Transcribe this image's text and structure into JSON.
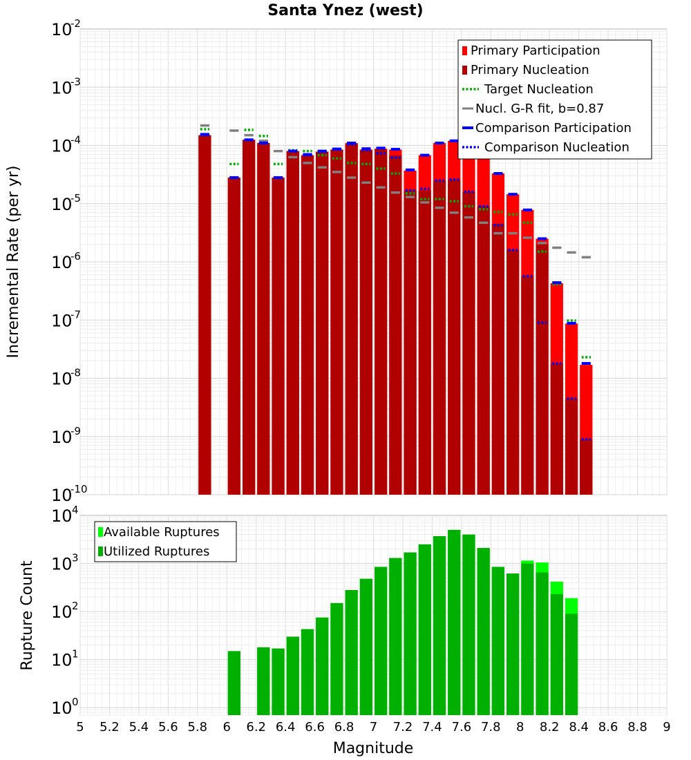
{
  "chart_data": [
    {
      "type": "bar",
      "title": "Santa Ynez (west)",
      "xlabel": "",
      "ylabel": "Incremental Rate (per yr)",
      "xlim": [
        5,
        9
      ],
      "ylim": [
        1e-10,
        0.01
      ],
      "yscale": "log",
      "ytick_exponents": [
        "-10",
        "-9",
        "-8",
        "-7",
        "-6",
        "-5",
        "-4",
        "-3",
        "-2"
      ],
      "grid": true,
      "legend_position": "top-right",
      "bin_width": 0.1,
      "x": [
        5.85,
        6.05,
        6.15,
        6.25,
        6.35,
        6.45,
        6.55,
        6.65,
        6.75,
        6.85,
        6.95,
        7.05,
        7.15,
        7.25,
        7.35,
        7.45,
        7.55,
        7.65,
        7.75,
        7.85,
        7.95,
        8.05,
        8.15,
        8.25,
        8.35,
        8.45
      ],
      "series": [
        {
          "name": "Primary Participation",
          "color": "#ff0000",
          "style": "bar",
          "values": [
            0.00015,
            2.8e-05,
            0.000125,
            0.00011,
            2.8e-05,
            8e-05,
            6.8e-05,
            7.8e-05,
            8.5e-05,
            0.00011,
            8.5e-05,
            8.8e-05,
            8.5e-05,
            3.7e-05,
            6.8e-05,
            0.00011,
            0.00012,
            9e-05,
            6.5e-05,
            3.3e-05,
            1.45e-05,
            7.8e-06,
            2.5e-06,
            4.3e-07,
            8.7e-08,
            1.7e-08
          ]
        },
        {
          "name": "Primary Nucleation",
          "color": "#b00000",
          "style": "bar",
          "values": [
            0.00015,
            2.8e-05,
            0.000125,
            0.00011,
            2.8e-05,
            8e-05,
            6.8e-05,
            7.8e-05,
            8.5e-05,
            0.000105,
            8.3e-05,
            8.5e-05,
            6.7e-05,
            1.7e-05,
            1.7e-05,
            2.5e-05,
            2.6e-05,
            1.6e-05,
            9e-06,
            4.5e-06,
            1.6e-06,
            5.7e-07,
            2e-06,
            1.8e-08,
            4.5e-09,
            9e-10
          ]
        },
        {
          "name": "Target Nucleation",
          "color": "#00b000",
          "style": "dotted-tick",
          "values": [
            0.00019,
            4.8e-05,
            0.000185,
            0.000145,
            4.8e-05,
            8.3e-05,
            8e-05,
            6.8e-05,
            6e-05,
            5e-05,
            4.8e-05,
            4e-05,
            3.3e-05,
            1.5e-05,
            1.2e-05,
            1.2e-05,
            1.1e-05,
            9e-06,
            8e-06,
            7.2e-06,
            6.5e-06,
            4.7e-06,
            1.5e-06,
            4.1e-07,
            9.8e-08,
            2.3e-08
          ]
        },
        {
          "name": "Nucl. G-R fit, b=0.87",
          "color": "#808080",
          "style": "tick",
          "values": [
            0.00022,
            0.00018,
            0.00015,
            0.00012,
            8e-05,
            6.3e-05,
            5e-05,
            4.2e-05,
            3.5e-05,
            2.8e-05,
            2.3e-05,
            1.9e-05,
            1.55e-05,
            1.3e-05,
            1.05e-05,
            8.5e-06,
            7e-06,
            5.8e-06,
            4.7e-06,
            3.1e-06,
            3.1e-06,
            2.6e-06,
            2.1e-06,
            1.75e-06,
            1.45e-06,
            1.2e-06
          ]
        },
        {
          "name": "Comparison Participation",
          "color": "#0000ff",
          "style": "tick",
          "values": [
            0.000155,
            2.8e-05,
            0.000125,
            0.00011,
            2.8e-05,
            8e-05,
            7e-05,
            8e-05,
            8.7e-05,
            0.00011,
            8.8e-05,
            9e-05,
            8.6e-05,
            3.8e-05,
            6.8e-05,
            0.00011,
            0.00012,
            9e-05,
            6.5e-05,
            3.3e-05,
            1.45e-05,
            7.8e-06,
            2.5e-06,
            4.4e-07,
            8.8e-08,
            1.8e-08
          ]
        },
        {
          "name": "Comparison Nucleation",
          "color": "#0000ff",
          "style": "dotted-tick",
          "values": [
            0.00015,
            2.8e-05,
            0.000125,
            0.00011,
            2.8e-05,
            8e-05,
            6.8e-05,
            7.8e-05,
            8.5e-05,
            0.000105,
            8.3e-05,
            7.3e-05,
            6.2e-05,
            1.7e-05,
            1.8e-05,
            2.5e-05,
            2.6e-05,
            1.6e-05,
            9e-06,
            4.3e-06,
            1.6e-06,
            5.7e-07,
            9e-08,
            1.8e-08,
            4.5e-09,
            9e-10
          ]
        }
      ]
    },
    {
      "type": "bar",
      "title": "",
      "xlabel": "Magnitude",
      "ylabel": "Rupture Count",
      "xlim": [
        5,
        9
      ],
      "ylim": [
        0.7,
        10000
      ],
      "yscale": "log",
      "ytick_exponents": [
        "0",
        "1",
        "2",
        "3",
        "4"
      ],
      "xticks": [
        "5",
        "5.2",
        "5.4",
        "5.6",
        "5.8",
        "6",
        "6.2",
        "6.4",
        "6.6",
        "6.8",
        "7",
        "7.2",
        "7.4",
        "7.6",
        "7.8",
        "8",
        "8.2",
        "8.4",
        "8.6",
        "8.8",
        "9"
      ],
      "grid": true,
      "legend_position": "top-left",
      "bin_width": 0.1,
      "x": [
        6.05,
        6.25,
        6.35,
        6.45,
        6.55,
        6.65,
        6.75,
        6.85,
        6.95,
        7.05,
        7.15,
        7.25,
        7.35,
        7.45,
        7.55,
        7.65,
        7.75,
        7.85,
        7.95,
        8.05,
        8.15,
        8.25,
        8.35
      ],
      "series": [
        {
          "name": "Available Ruptures",
          "color": "#00ff00",
          "values": [
            15,
            18,
            17,
            30,
            43,
            75,
            150,
            280,
            480,
            850,
            1300,
            1700,
            2500,
            3700,
            5000,
            4000,
            2100,
            850,
            620,
            1150,
            1050,
            420,
            190
          ]
        },
        {
          "name": "Utilized Ruptures",
          "color": "#00b000",
          "values": [
            15,
            18,
            17,
            30,
            43,
            75,
            150,
            280,
            480,
            850,
            1300,
            1700,
            2500,
            3700,
            5000,
            4000,
            2100,
            850,
            620,
            1000,
            650,
            230,
            90
          ]
        }
      ]
    }
  ]
}
